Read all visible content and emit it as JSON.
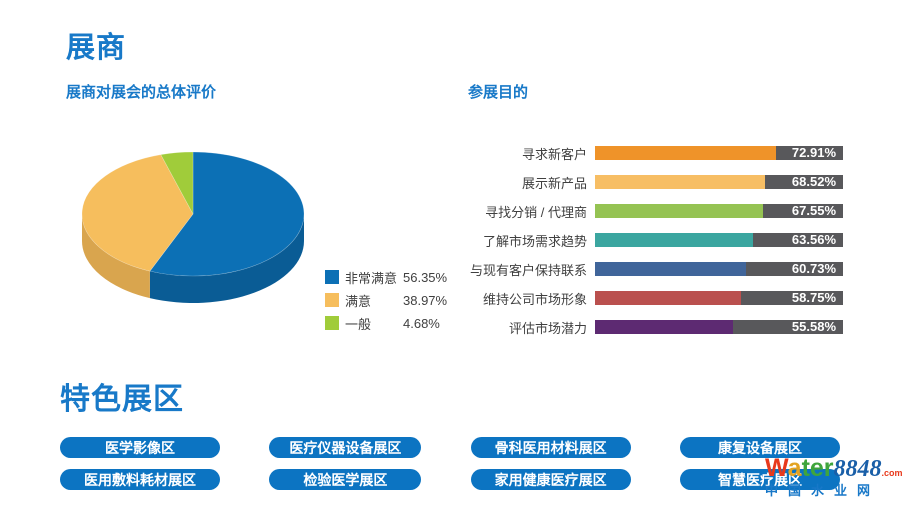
{
  "page": {
    "title": "展商"
  },
  "sections": {
    "pie_title": "展商对展会的总体评价",
    "bar_title": "参展目的",
    "zones_title": "特色展区"
  },
  "colors": {
    "accent_blue": "#1879C8",
    "zone_button": "#0C74C2",
    "bar_track": "#58585B",
    "text": "#404040",
    "value_text": "#FFFFFF"
  },
  "zones": [
    "医学影像区",
    "医疗仪器设备展区",
    "骨科医用材料展区",
    "康复设备展区",
    "医用敷料耗材展区",
    "检验医学展区",
    "家用健康医疗展区",
    "智慧医疗展区"
  ],
  "watermark": {
    "w": "W",
    "a": "a",
    "ter": "ter",
    "num": "8848",
    "com": ".com",
    "site": "中国水业网"
  },
  "chart_data": [
    {
      "type": "pie",
      "style": "3d",
      "title": "展商对展会的总体评价",
      "labels": [
        "非常满意",
        "满意",
        "一般"
      ],
      "values": [
        56.35,
        38.97,
        4.68
      ],
      "value_labels": [
        "56.35%",
        "38.97%",
        "4.68%"
      ],
      "colors": [
        "#0C70B5",
        "#F6BE5D",
        "#A0CC3A"
      ],
      "side_colors": [
        "#0A5C95",
        "#D9A54E",
        "#7FA32E"
      ],
      "start_angle": "top",
      "direction": "clockwise",
      "legend_position": "right"
    },
    {
      "type": "bar",
      "orientation": "horizontal",
      "title": "参展目的",
      "categories": [
        "寻求新客户",
        "展示新产品",
        "寻找分销 / 代理商",
        "了解市场需求趋势",
        "与现有客户保持联系",
        "维持公司市场形象",
        "评估市场潜力"
      ],
      "values": [
        72.91,
        68.52,
        67.55,
        63.56,
        60.73,
        58.75,
        55.58
      ],
      "value_labels": [
        "72.91%",
        "68.52%",
        "67.55%",
        "63.56%",
        "60.73%",
        "58.75%",
        "55.58%"
      ],
      "bar_colors": [
        "#EF9329",
        "#F7BE64",
        "#95C353",
        "#3BA6A0",
        "#40659A",
        "#BA504E",
        "#5D2A72"
      ],
      "track_color": "#58585B",
      "xlim": [
        0,
        100
      ],
      "value_suffix": "%",
      "grid": false,
      "value_label_position": "inside-track-right"
    }
  ]
}
